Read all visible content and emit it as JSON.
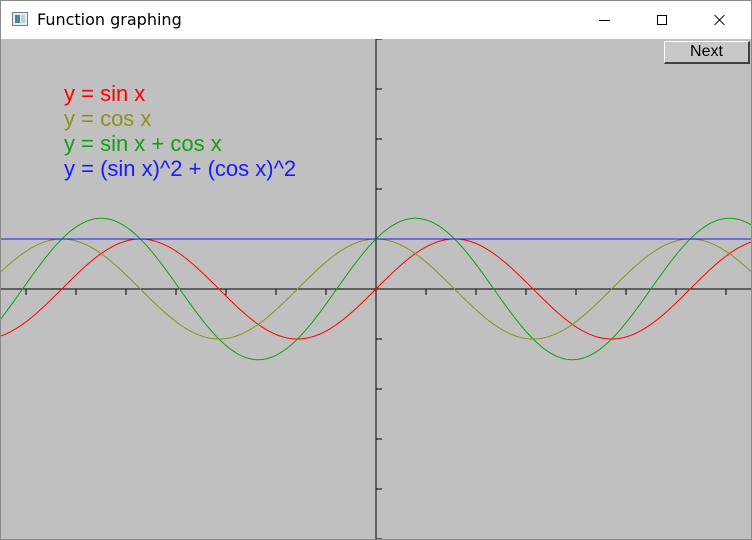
{
  "window": {
    "title": "Function graphing",
    "title_icon": "app-window-icon",
    "controls": [
      "minimize-icon",
      "maximize-icon",
      "close-icon"
    ]
  },
  "toolbar": {
    "next_label": "Next"
  },
  "colors": {
    "background": "#c0c0c0",
    "axis": "#000000"
  },
  "chart_data": {
    "type": "line",
    "x_range": [
      -7.5,
      7.5
    ],
    "y_range": [
      -5,
      5
    ],
    "x_tick_step": 1,
    "y_tick_step": 1,
    "grid": false,
    "legend_position": "top-left",
    "series": [
      {
        "name": "y = sin x",
        "expression": "sin x",
        "color": "#ff0000"
      },
      {
        "name": "y = cos x",
        "expression": "cos x",
        "color": "#909020"
      },
      {
        "name": "y = sin x + cos x",
        "expression": "sin x + cos x",
        "color": "#10a010"
      },
      {
        "name": "y = (sin x)^2 + (cos x)^2",
        "expression": "(sin x)^2 + (cos x)^2",
        "color": "#1a1aff"
      }
    ]
  }
}
